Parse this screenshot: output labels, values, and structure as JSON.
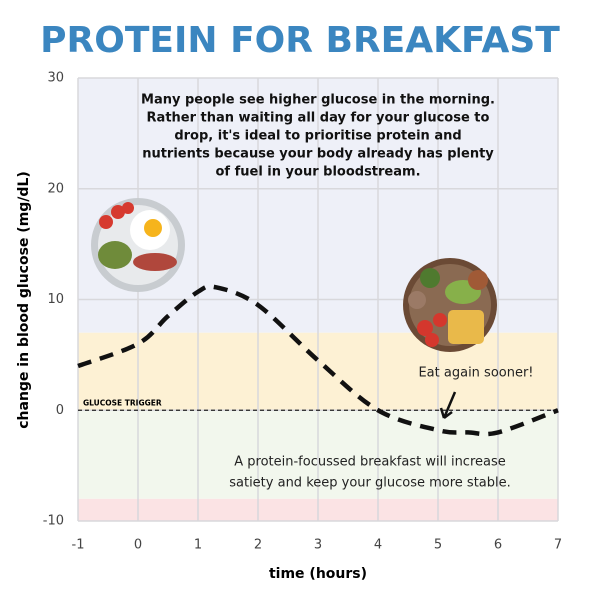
{
  "chart_data": {
    "type": "line",
    "title": "PROTEIN FOR BREAKFAST",
    "xlabel": "time (hours)",
    "ylabel": "change in blood glucose (mg/dL)",
    "x": [
      -1,
      0,
      0.5,
      1,
      1.3,
      2,
      3,
      4,
      5,
      5.5,
      6,
      7
    ],
    "series": [
      {
        "name": "glucose",
        "color": "#111111",
        "values": [
          4,
          6,
          8.5,
          10.7,
          11.1,
          9.5,
          4.5,
          0,
          -1.8,
          -2,
          -2,
          0
        ]
      }
    ],
    "xlim": [
      -1,
      7
    ],
    "xticks": [
      -1,
      0,
      1,
      2,
      3,
      4,
      5,
      6,
      7
    ],
    "ylim": [
      -10,
      30
    ],
    "yticks": [
      -10,
      0,
      10,
      20,
      30
    ],
    "grid": true,
    "bands": [
      {
        "from": 7,
        "to": 30,
        "color": "#eef0f8"
      },
      {
        "from": 0,
        "to": 7,
        "color": "#fdf1d4"
      },
      {
        "from": -8,
        "to": 0,
        "color": "#f2f7ed"
      },
      {
        "from": -10,
        "to": -8,
        "color": "#fbe3e4"
      }
    ],
    "reference_line": {
      "value": 0,
      "label": "GLUCOSE TRIGGER"
    },
    "annotations": {
      "top": [
        "Many people see higher glucose in the morning.",
        "Rather than waiting all day for your glucose to",
        "drop, it's ideal to prioritise protein and",
        "nutrients because your body already has plenty",
        "of fuel in your bloodstream."
      ],
      "arrow": "Eat again sooner!",
      "bottom": [
        "A protein-focussed breakfast will increase",
        "satiety and keep your glucose more stable."
      ]
    }
  }
}
